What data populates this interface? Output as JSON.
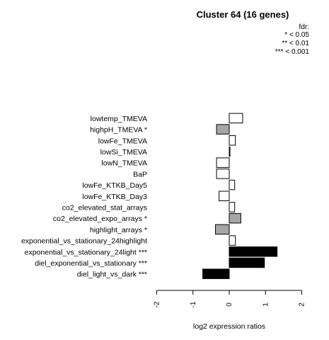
{
  "chart_data": {
    "type": "bar",
    "orientation": "horizontal",
    "title": "Cluster 64 (16 genes)",
    "legend": {
      "placement": "top-right",
      "title": "fdr:",
      "entries": [
        "* < 0.05",
        "** < 0.01",
        "*** < 0.001"
      ]
    },
    "xlabel": "log2 expression ratios",
    "xlim": [
      -2,
      2
    ],
    "xticks": [
      "-2",
      "-1",
      "0",
      "1",
      "2"
    ],
    "categories": [
      "lowtemp_TMEVA",
      "highpH_TMEVA *",
      "lowFe_TMEVA",
      "lowSi_TMEVA",
      "lowN_TMEVA",
      "BaP",
      "lowFe_KTKB_Day5",
      "lowFe_KTKB_Day3",
      "co2_elevated_stat_arrays",
      "co2_elevated_expo_arrays *",
      "highlight_arrays *",
      "exponential_vs_stationary_24highlight",
      "exponential_vs_stationary_24light ***",
      "diel_exponential_vs_stationary ***",
      "diel_light_vs_dark ***"
    ],
    "values": [
      0.37,
      -0.35,
      0.17,
      0.02,
      -0.35,
      -0.35,
      0.15,
      -0.28,
      0.15,
      0.32,
      -0.38,
      0.17,
      1.32,
      0.97,
      -0.73
    ],
    "significance": [
      "",
      "*",
      "",
      "",
      "",
      "",
      "",
      "",
      "",
      "*",
      "*",
      "",
      "***",
      "***",
      "***"
    ],
    "colors": {
      "none": "#ffffff",
      "*": "#a6a6a6",
      "***": "#000000",
      "stroke": "#000000"
    }
  }
}
